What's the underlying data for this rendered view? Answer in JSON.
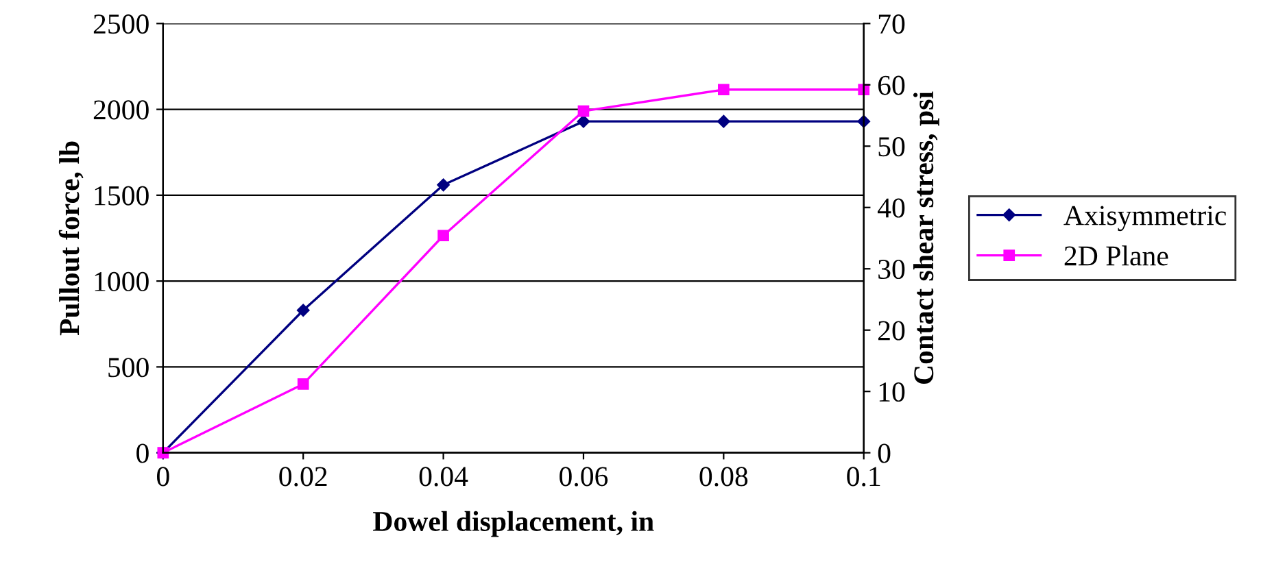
{
  "chart_data": {
    "type": "line",
    "xlabel": "Dowel displacement, in",
    "ylabel": "Pullout force, lb",
    "y2label": "Contact shear stress, psi",
    "x": [
      0,
      0.02,
      0.04,
      0.06,
      0.08,
      0.1
    ],
    "series": [
      {
        "name": "Axisymmetric",
        "color": "#000080",
        "marker": "diamond",
        "values": [
          0,
          830,
          1560,
          1930,
          1930,
          1930
        ]
      },
      {
        "name": "2D Plane",
        "color": "#ff00ff",
        "marker": "square",
        "values": [
          0,
          400,
          1265,
          1990,
          2115,
          2115
        ]
      }
    ],
    "xlim": [
      0,
      0.1
    ],
    "xticks": [
      0,
      0.02,
      0.04,
      0.06,
      0.08,
      0.1
    ],
    "ylim": [
      0,
      2500
    ],
    "yticks": [
      0,
      500,
      1000,
      1500,
      2000,
      2500
    ],
    "y2lim": [
      0,
      70
    ],
    "y2ticks": [
      0,
      10,
      20,
      30,
      40,
      50,
      60,
      70
    ],
    "grid": "y",
    "legend": "right",
    "line_style": "solid"
  }
}
